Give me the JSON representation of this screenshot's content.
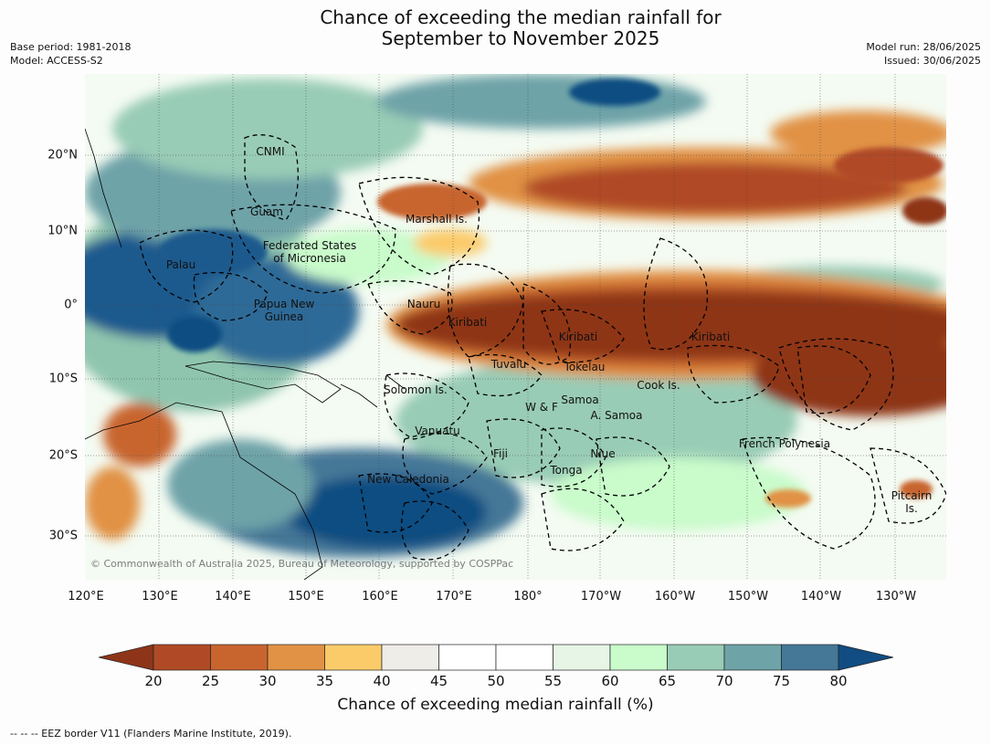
{
  "title_line1": "Chance of exceeding the median rainfall for",
  "title_line2": "September to November 2025",
  "base_period": "Base period: 1981-2018",
  "model": "Model: ACCESS-S2",
  "model_run": "Model run: 28/06/2025",
  "issued": "Issued: 30/06/2025",
  "lat_labels": [
    "20°N",
    "10°N",
    "0°",
    "10°S",
    "20°S",
    "30°S"
  ],
  "lon_labels": [
    "120°E",
    "130°E",
    "140°E",
    "150°E",
    "160°E",
    "170°E",
    "180°",
    "170°W",
    "160°W",
    "150°W",
    "140°W",
    "130°W"
  ],
  "regions": [
    "CNMI",
    "Guam",
    "Marshall Is.",
    "Federated States\nof Micronesia",
    "Palau",
    "Papua New\nGuinea",
    "Nauru",
    "Kiribati",
    "Kiribati",
    "Kiribati",
    "Tuvalu",
    "Tokelau",
    "Cook Is.",
    "Solomon Is.",
    "Samoa",
    "W & F",
    "A. Samoa",
    "Vanuatu",
    "Fiji",
    "Niue",
    "French Polynesia",
    "Tonga",
    "New Caledonia",
    "Pitcairn\nIs."
  ],
  "copyright": "© Commonwealth of Australia 2025, Bureau of Meteorology, supported by COSPPac",
  "colorbar": {
    "ticks": [
      "20",
      "25",
      "30",
      "35",
      "40",
      "45",
      "50",
      "55",
      "60",
      "65",
      "70",
      "75",
      "80"
    ],
    "colors": [
      "#8e3519",
      "#b04a26",
      "#c8652f",
      "#e19244",
      "#fbcb6a",
      "#efede8",
      "#ffffff",
      "#ffffff",
      "#e6f5e6",
      "#c9fbcb",
      "#99ccb6",
      "#6ea3a8",
      "#457797",
      "#114d82"
    ],
    "label": "Chance of exceeding median rainfall (%)"
  },
  "footnote": "-- -- -- EEZ border V11 (Flanders Marine Institute, 2019)."
}
